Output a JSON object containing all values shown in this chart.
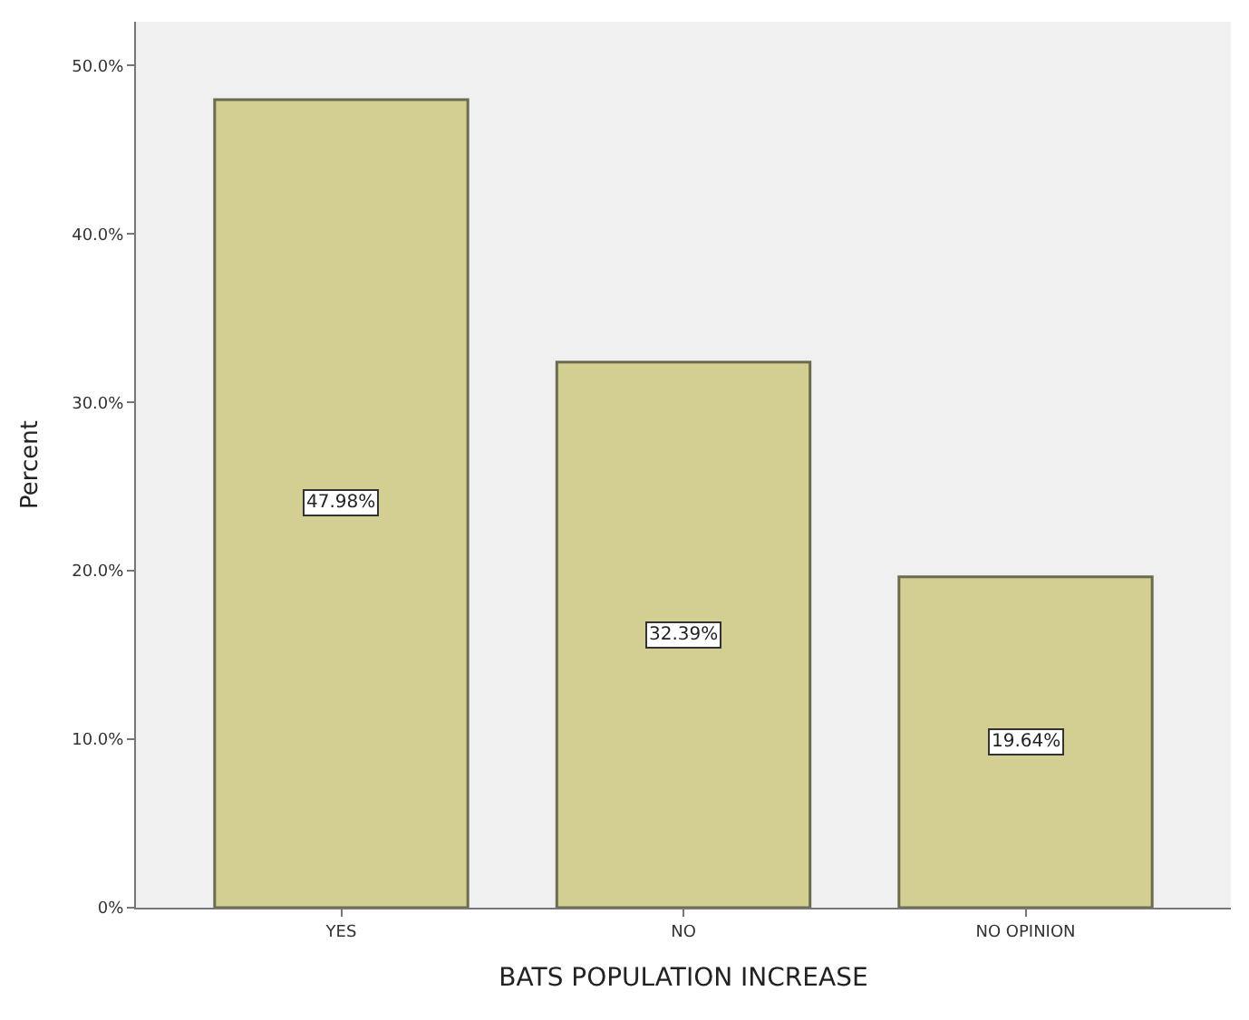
{
  "chart_data": {
    "type": "bar",
    "xlabel": "BATS POPULATION INCREASE",
    "ylabel": "Percent",
    "categories": [
      "YES",
      "NO",
      "NO OPINION"
    ],
    "values": [
      47.98,
      32.39,
      19.64
    ],
    "value_labels": [
      "47.98%",
      "32.39%",
      "19.64%"
    ],
    "color": "#d3ce92",
    "ylim": [
      0,
      52.6
    ],
    "yticks": [
      {
        "value": 0,
        "label": "0%"
      },
      {
        "value": 10,
        "label": "10.0%"
      },
      {
        "value": 20,
        "label": "20.0%"
      },
      {
        "value": 30,
        "label": "30.0%"
      },
      {
        "value": 40,
        "label": "40.0%"
      },
      {
        "value": 50,
        "label": "50.0%"
      }
    ],
    "grid": false
  }
}
